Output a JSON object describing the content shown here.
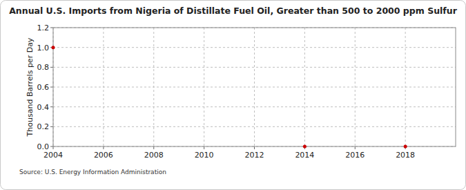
{
  "chart_data": {
    "type": "line",
    "title": "Annual U.S. Imports from Nigeria of Distillate Fuel Oil, Greater than 500 to 2000 ppm Sulfur",
    "y_label": "Thousand Barrels per Day",
    "annotations": [
      "Source: U.S. Energy Information Administration"
    ],
    "x": [
      2004,
      2005,
      2006,
      2007,
      2008,
      2009,
      2010,
      2011,
      2012,
      2013,
      2014,
      2015,
      2016,
      2017,
      2018
    ],
    "values": [
      1.0,
      null,
      null,
      null,
      null,
      null,
      null,
      null,
      null,
      null,
      0,
      null,
      null,
      null,
      0
    ],
    "color": "#cc0000",
    "marker": "circle",
    "line_style": "solid",
    "xlim": [
      2004,
      2020
    ],
    "xticks": [
      2004,
      2006,
      2008,
      2010,
      2012,
      2014,
      2016,
      2018
    ],
    "ylim": [
      0,
      1.2
    ],
    "yticks": [
      {
        "value": 0,
        "label": "0.0"
      },
      0.2,
      0.4,
      0.6,
      0.8,
      {
        "value": 1,
        "label": "1.0"
      },
      1.2
    ],
    "grid": true
  }
}
